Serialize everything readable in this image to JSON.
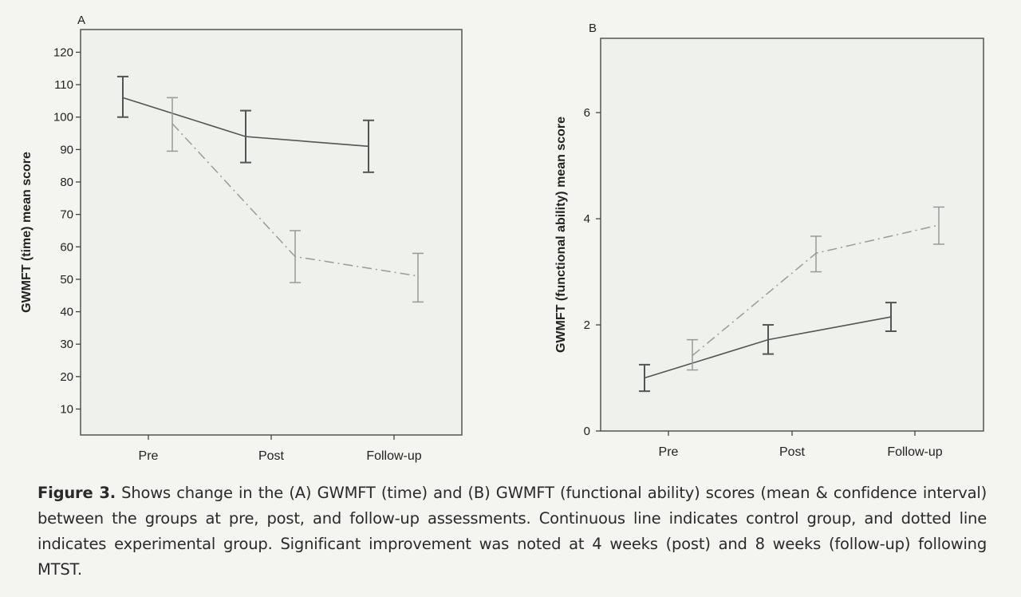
{
  "chart_data": [
    {
      "type": "line",
      "panel_label": "A",
      "ylabel": "GWMFT (time) mean score",
      "xlabel": "",
      "categories": [
        "Pre",
        "Post",
        "Follow-up"
      ],
      "yticks": [
        10,
        20,
        30,
        40,
        50,
        60,
        70,
        80,
        90,
        100,
        110,
        120
      ],
      "ylim": [
        2,
        127
      ],
      "grid": false,
      "error_bars": "confidence interval",
      "series": [
        {
          "style": "solid",
          "color": "#555555",
          "values": [
            106,
            94,
            91
          ],
          "lower": [
            100,
            86,
            83
          ],
          "upper": [
            112.5,
            102,
            99
          ]
        },
        {
          "style": "dash-dot",
          "color": "#9a9a9a",
          "values": [
            98,
            57,
            51
          ],
          "lower": [
            89.5,
            49,
            43
          ],
          "upper": [
            106,
            65,
            58
          ]
        }
      ]
    },
    {
      "type": "line",
      "panel_label": "B",
      "ylabel": "GWMFT (functional ability) mean score",
      "xlabel": "",
      "categories": [
        "Pre",
        "Post",
        "Follow-up"
      ],
      "yticks": [
        0,
        2,
        4,
        6
      ],
      "ylim": [
        0,
        7.4
      ],
      "grid": false,
      "error_bars": "confidence interval",
      "series": [
        {
          "style": "solid",
          "color": "#555555",
          "values": [
            1.0,
            1.72,
            2.15
          ],
          "lower": [
            0.75,
            1.45,
            1.88
          ],
          "upper": [
            1.25,
            2.0,
            2.42
          ]
        },
        {
          "style": "dash-dot",
          "color": "#9a9a9a",
          "values": [
            1.42,
            3.35,
            3.88
          ],
          "lower": [
            1.15,
            3.0,
            3.52
          ],
          "upper": [
            1.72,
            3.67,
            4.22
          ]
        }
      ]
    }
  ],
  "caption": {
    "label": "Figure 3.",
    "text": " Shows change in the (A) GWMFT (time) and (B) GWMFT (functional ability) scores (mean & confidence interval) between the groups at pre, post, and follow-up assessments. Continuous line indicates control group, and dotted line indicates experimental group. Significant improvement was noted at 4 weeks (post) and 8 weeks (follow-up) following MTST."
  }
}
